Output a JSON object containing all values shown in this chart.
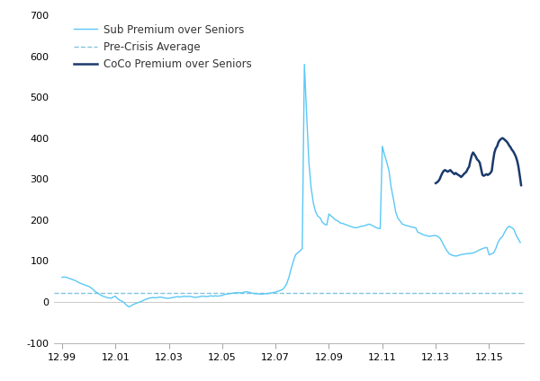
{
  "pre_crisis_avg": 22,
  "ylim": [
    -100,
    700
  ],
  "yticks": [
    -100,
    0,
    100,
    200,
    300,
    400,
    500,
    600,
    700
  ],
  "xtick_labels": [
    "12.99",
    "12.01",
    "12.03",
    "12.05",
    "12.07",
    "12.09",
    "12.11",
    "12.13",
    "12.15"
  ],
  "xtick_positions": [
    1999.0,
    2001.0,
    2003.0,
    2005.0,
    2007.0,
    2009.0,
    2011.0,
    2013.0,
    2015.0
  ],
  "xlim": [
    1998.7,
    2016.3
  ],
  "sub_color": "#5BC8F5",
  "coco_color": "#1A3A6C",
  "pre_crisis_color": "#82C4E0",
  "legend_sub": "Sub Premium over Seniors",
  "legend_pre": "Pre-Crisis Average",
  "legend_coco": "CoCo Premium over Seniors",
  "sub_x": [
    1999.0,
    1999.08,
    1999.17,
    1999.25,
    1999.33,
    1999.42,
    1999.5,
    1999.58,
    1999.67,
    1999.75,
    1999.83,
    1999.92,
    2000.0,
    2000.08,
    2000.17,
    2000.25,
    2000.33,
    2000.42,
    2000.5,
    2000.58,
    2000.67,
    2000.75,
    2000.83,
    2000.92,
    2001.0,
    2001.08,
    2001.17,
    2001.25,
    2001.33,
    2001.42,
    2001.5,
    2001.58,
    2001.67,
    2001.75,
    2001.83,
    2001.92,
    2002.0,
    2002.08,
    2002.17,
    2002.25,
    2002.33,
    2002.42,
    2002.5,
    2002.58,
    2002.67,
    2002.75,
    2002.83,
    2002.92,
    2003.0,
    2003.08,
    2003.17,
    2003.25,
    2003.33,
    2003.42,
    2003.5,
    2003.58,
    2003.67,
    2003.75,
    2003.83,
    2003.92,
    2004.0,
    2004.08,
    2004.17,
    2004.25,
    2004.33,
    2004.42,
    2004.5,
    2004.58,
    2004.67,
    2004.75,
    2004.83,
    2004.92,
    2005.0,
    2005.08,
    2005.17,
    2005.25,
    2005.33,
    2005.42,
    2005.5,
    2005.58,
    2005.67,
    2005.75,
    2005.83,
    2005.92,
    2006.0,
    2006.08,
    2006.17,
    2006.25,
    2006.33,
    2006.42,
    2006.5,
    2006.58,
    2006.67,
    2006.75,
    2006.83,
    2006.92,
    2007.0,
    2007.08,
    2007.17,
    2007.25,
    2007.33,
    2007.42,
    2007.5,
    2007.58,
    2007.67,
    2007.75,
    2007.83,
    2007.92,
    2008.0,
    2008.08,
    2008.17,
    2008.25,
    2008.33,
    2008.42,
    2008.5,
    2008.58,
    2008.67,
    2008.75,
    2008.83,
    2008.92,
    2009.0,
    2009.08,
    2009.17,
    2009.25,
    2009.33,
    2009.42,
    2009.5,
    2009.58,
    2009.67,
    2009.75,
    2009.83,
    2009.92,
    2010.0,
    2010.08,
    2010.17,
    2010.25,
    2010.33,
    2010.42,
    2010.5,
    2010.58,
    2010.67,
    2010.75,
    2010.83,
    2010.92,
    2011.0,
    2011.08,
    2011.17,
    2011.25,
    2011.33,
    2011.42,
    2011.5,
    2011.58,
    2011.67,
    2011.75,
    2011.83,
    2011.92,
    2012.0,
    2012.08,
    2012.17,
    2012.25,
    2012.33,
    2012.42,
    2012.5,
    2012.58,
    2012.67,
    2012.75,
    2012.83,
    2012.92,
    2013.0,
    2013.08,
    2013.17,
    2013.25,
    2013.33,
    2013.42,
    2013.5,
    2013.58,
    2013.67,
    2013.75,
    2013.83,
    2013.92,
    2014.0,
    2014.08,
    2014.17,
    2014.25,
    2014.33,
    2014.42,
    2014.5,
    2014.58,
    2014.67,
    2014.75,
    2014.83,
    2014.92,
    2015.0,
    2015.08,
    2015.17,
    2015.25,
    2015.33,
    2015.42,
    2015.5,
    2015.58,
    2015.67,
    2015.75,
    2015.83,
    2015.92,
    2016.0,
    2016.08,
    2016.17
  ],
  "sub_y": [
    60,
    61,
    60,
    58,
    56,
    54,
    52,
    49,
    46,
    44,
    42,
    40,
    38,
    35,
    30,
    25,
    22,
    18,
    15,
    13,
    11,
    10,
    9,
    12,
    14,
    8,
    4,
    2,
    -2,
    -8,
    -12,
    -10,
    -6,
    -4,
    -2,
    0,
    2,
    5,
    7,
    9,
    10,
    11,
    10,
    11,
    12,
    11,
    10,
    9,
    9,
    10,
    11,
    12,
    13,
    12,
    13,
    14,
    13,
    14,
    13,
    12,
    11,
    12,
    13,
    14,
    14,
    13,
    14,
    15,
    14,
    15,
    14,
    15,
    16,
    18,
    19,
    20,
    21,
    22,
    22,
    23,
    22,
    23,
    24,
    25,
    24,
    22,
    21,
    20,
    20,
    19,
    19,
    20,
    20,
    21,
    22,
    23,
    24,
    26,
    28,
    30,
    35,
    45,
    60,
    80,
    100,
    115,
    120,
    125,
    130,
    580,
    450,
    340,
    280,
    240,
    220,
    210,
    205,
    195,
    190,
    188,
    215,
    210,
    205,
    200,
    198,
    193,
    192,
    190,
    188,
    186,
    184,
    182,
    181,
    182,
    184,
    185,
    186,
    188,
    190,
    188,
    185,
    182,
    180,
    179,
    380,
    360,
    340,
    320,
    280,
    250,
    220,
    205,
    197,
    190,
    188,
    186,
    185,
    183,
    182,
    181,
    170,
    168,
    165,
    163,
    162,
    160,
    161,
    162,
    162,
    160,
    155,
    145,
    135,
    125,
    118,
    115,
    113,
    112,
    113,
    115,
    116,
    117,
    118,
    118,
    119,
    120,
    122,
    125,
    128,
    130,
    132,
    133,
    115,
    117,
    120,
    130,
    145,
    155,
    160,
    170,
    180,
    185,
    182,
    178,
    165,
    155,
    145
  ],
  "coco_x": [
    2013.0,
    2013.05,
    2013.1,
    2013.15,
    2013.2,
    2013.25,
    2013.3,
    2013.35,
    2013.4,
    2013.45,
    2013.5,
    2013.55,
    2013.6,
    2013.65,
    2013.7,
    2013.75,
    2013.8,
    2013.85,
    2013.9,
    2013.95,
    2014.0,
    2014.05,
    2014.1,
    2014.15,
    2014.2,
    2014.25,
    2014.3,
    2014.35,
    2014.4,
    2014.45,
    2014.5,
    2014.55,
    2014.6,
    2014.65,
    2014.7,
    2014.75,
    2014.8,
    2014.85,
    2014.9,
    2014.95,
    2015.0,
    2015.05,
    2015.1,
    2015.15,
    2015.2,
    2015.25,
    2015.3,
    2015.35,
    2015.4,
    2015.45,
    2015.5,
    2015.55,
    2015.6,
    2015.65,
    2015.7,
    2015.75,
    2015.8,
    2015.85,
    2015.9,
    2015.95,
    2016.0,
    2016.05,
    2016.1,
    2016.15,
    2016.2
  ],
  "coco_y": [
    290,
    292,
    295,
    300,
    308,
    315,
    320,
    322,
    320,
    318,
    320,
    322,
    318,
    315,
    312,
    315,
    312,
    310,
    308,
    305,
    308,
    312,
    315,
    318,
    325,
    330,
    345,
    358,
    365,
    360,
    355,
    348,
    345,
    340,
    325,
    310,
    308,
    310,
    312,
    310,
    312,
    315,
    320,
    345,
    365,
    375,
    380,
    390,
    395,
    398,
    400,
    398,
    395,
    392,
    388,
    382,
    378,
    372,
    368,
    362,
    355,
    345,
    330,
    308,
    285
  ]
}
